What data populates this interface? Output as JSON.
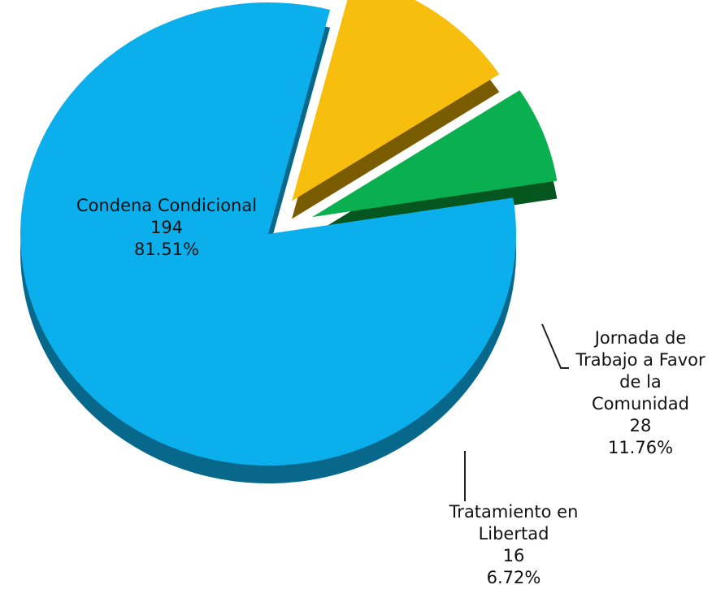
{
  "chart_data": {
    "type": "pie",
    "style": "3d-exploded",
    "slices": [
      {
        "label": "Condena Condicional",
        "value": 194,
        "percent": "81.51%",
        "color": "#0AAFEB",
        "side_color": "#07688C"
      },
      {
        "label": "Jornada de Trabajo a Favor de la Comunidad",
        "label_lines": [
          "Jornada de",
          "Trabajo a Favor",
          "de la",
          "Comunidad"
        ],
        "value": 28,
        "percent": "11.76%",
        "color": "#F7BE0D",
        "side_color": "#7A5C00"
      },
      {
        "label": "Tratamiento en Libertad",
        "label_lines": [
          "Tratamiento en",
          "Libertad"
        ],
        "value": 16,
        "percent": "6.72%",
        "color": "#0AAF4F",
        "side_color": "#05561F"
      }
    ],
    "legend": "none"
  }
}
